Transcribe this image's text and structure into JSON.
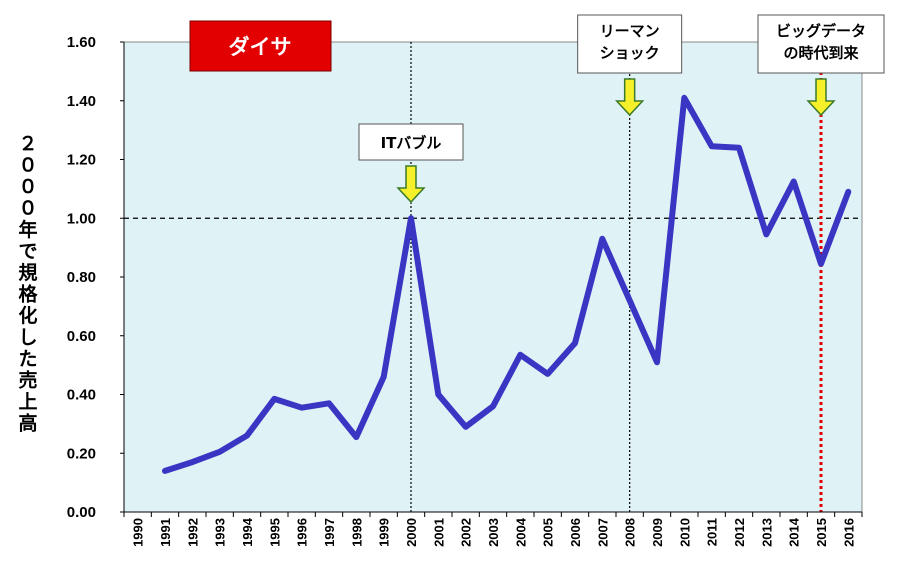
{
  "chart_data": {
    "type": "line",
    "title": "ダイサ",
    "ylabel": "２０００年で規格化した売上高",
    "xlabel": "",
    "ylim": [
      0,
      1.6
    ],
    "yticks": [
      "0.00",
      "0.20",
      "0.40",
      "0.60",
      "0.80",
      "1.00",
      "1.20",
      "1.40",
      "1.60"
    ],
    "ytick_values": [
      0,
      0.2,
      0.4,
      0.6,
      0.8,
      1.0,
      1.2,
      1.4,
      1.6
    ],
    "categories": [
      "1990",
      "1991",
      "1992",
      "1993",
      "1994",
      "1995",
      "1996",
      "1997",
      "1998",
      "1999",
      "2000",
      "2001",
      "2002",
      "2003",
      "2004",
      "2005",
      "2006",
      "2007",
      "2008",
      "2009",
      "2010",
      "2011",
      "2012",
      "2013",
      "2014",
      "2015",
      "2016"
    ],
    "series": [
      {
        "values": [
          null,
          0.14,
          0.17,
          0.205,
          0.26,
          0.385,
          0.355,
          0.37,
          0.255,
          0.46,
          1.0,
          0.4,
          0.29,
          0.36,
          0.535,
          0.47,
          0.575,
          0.93,
          0.72,
          0.51,
          1.41,
          1.245,
          1.24,
          0.945,
          1.125,
          0.845,
          1.09
        ],
        "color": "#3b35c4"
      }
    ],
    "reference_line": {
      "y": 1.0,
      "style": "dashed",
      "color": "#000000"
    },
    "annotations": [
      {
        "label": "ITバブル",
        "x": "2000",
        "line_color": "#000000",
        "line_style": "dotted"
      },
      {
        "label": "リーマン\nショック",
        "x": "2008",
        "line_color": "#000000",
        "line_style": "dotted"
      },
      {
        "label": "ビッグデータ\nの時代到来",
        "x": "2015",
        "line_color": "#e00000",
        "line_style": "dotted"
      }
    ],
    "plot_background": "#dff2f6",
    "title_badge_color": "#e30000",
    "arrow_color": "#f6f02a",
    "grid": false
  }
}
